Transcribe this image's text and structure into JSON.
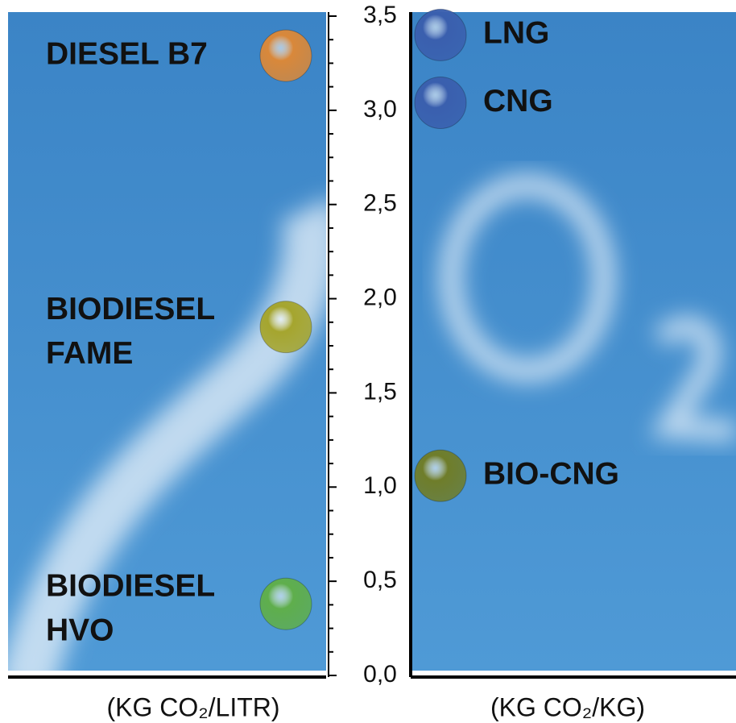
{
  "chart_data": {
    "type": "dot",
    "ylim": [
      0,
      3.5
    ],
    "yticks": [
      {
        "value": 0,
        "label": "0,0"
      },
      {
        "value": 0.5,
        "label": "0,5"
      },
      {
        "value": 1,
        "label": "1,0"
      },
      {
        "value": 1.5,
        "label": "1,5"
      },
      {
        "value": 2,
        "label": "2,0"
      },
      {
        "value": 2.5,
        "label": "2,5"
      },
      {
        "value": 3,
        "label": "3,0"
      },
      {
        "value": 3.5,
        "label": "3,5"
      }
    ],
    "panels": [
      {
        "xlabel": "(KG CO₂/LITR)",
        "side": "left",
        "points": [
          {
            "label": [
              "DIESEL B7"
            ],
            "value": 3.29,
            "color": "#d9883a"
          },
          {
            "label": [
              "BIODIESEL",
              "FAME"
            ],
            "value": 1.85,
            "color": "#a5a52e"
          },
          {
            "label": [
              "BIODIESEL",
              "HVO"
            ],
            "value": 0.38,
            "color": "#5fae4c"
          }
        ]
      },
      {
        "xlabel": "(KG CO₂/KG)",
        "side": "right",
        "points": [
          {
            "label": [
              "LNG"
            ],
            "value": 3.4,
            "color": "#3a5fae"
          },
          {
            "label": [
              "CNG"
            ],
            "value": 3.04,
            "color": "#3a5fae"
          },
          {
            "label": [
              "BIO-CNG"
            ],
            "value": 1.06,
            "color": "#6f7d2a"
          }
        ]
      }
    ]
  }
}
